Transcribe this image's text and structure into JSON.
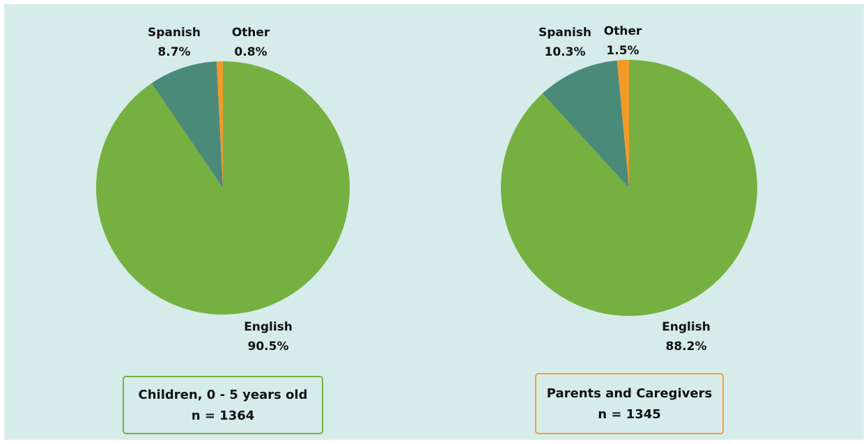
{
  "chart_data": [
    {
      "type": "pie",
      "title": "Children, 0 - 5 years old",
      "subtitle": "n = 1364",
      "categories": [
        "English",
        "Spanish",
        "Other"
      ],
      "values": [
        90.5,
        8.7,
        0.8
      ],
      "value_labels": [
        "90.5%",
        "8.7%",
        "0.8%"
      ],
      "colors": [
        "#76b041",
        "#4a8a79",
        "#f19a2a"
      ],
      "box_color": "#76b041"
    },
    {
      "type": "pie",
      "title": "Parents and Caregivers",
      "subtitle": "n = 1345",
      "categories": [
        "English",
        "Spanish",
        "Other"
      ],
      "values": [
        88.2,
        10.3,
        1.5
      ],
      "value_labels": [
        "88.2%",
        "10.3%",
        "1.5%"
      ],
      "colors": [
        "#76b041",
        "#4a8a79",
        "#f19a2a"
      ],
      "box_color": "#f0a030"
    }
  ]
}
